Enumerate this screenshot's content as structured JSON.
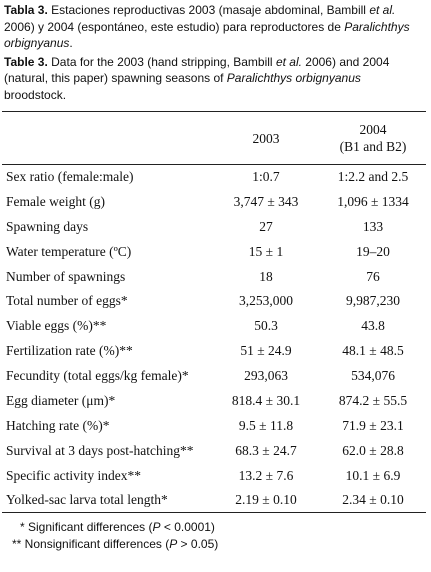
{
  "caption_es": {
    "label": "Tabla 3.",
    "parts": [
      "Estaciones reproductivas 2003 (masaje abdominal, Bambill ",
      "et al.",
      " 2006) y 2004 (espontáneo, este estudio) para reproductores de ",
      "Paralichthys orbignyanus",
      "."
    ]
  },
  "caption_en": {
    "label": "Table 3.",
    "parts": [
      "Data for the 2003 (hand stripping, Bambill ",
      "et al.",
      " 2006) and 2004 (natural, this paper) spawning seasons of ",
      "Paralichthys orbignyanus",
      " broodstock."
    ]
  },
  "table": {
    "header": [
      "2003",
      [
        "2004",
        "(B1 and B2)"
      ]
    ],
    "rows": [
      [
        "Sex ratio (female:male)",
        "1:0.7",
        "1:2.2 and 2.5"
      ],
      [
        "Female weight (g)",
        "3,747 ± 343",
        "1,096 ± 1334"
      ],
      [
        "Spawning days",
        "27",
        "133"
      ],
      [
        "Water temperature (ºC)",
        "15 ± 1",
        "19–20"
      ],
      [
        "Number of spawnings",
        "18",
        "76"
      ],
      [
        "Total number of eggs*",
        "3,253,000",
        "9,987,230"
      ],
      [
        "Viable eggs (%)**",
        "50.3",
        "43.8"
      ],
      [
        "Fertilization rate (%)**",
        "51 ± 24.9",
        "48.1 ± 48.5"
      ],
      [
        "Fecundity (total eggs/kg female)*",
        "293,063",
        "534,076"
      ],
      [
        "Egg diameter (μm)*",
        "818.4 ± 30.1",
        "874.2 ± 55.5"
      ],
      [
        "Hatching rate (%)*",
        "9.5 ± 11.8",
        "71.9 ± 23.1"
      ],
      [
        "Survival at 3 days post-hatching**",
        "68.3 ± 24.7",
        "62.0 ± 28.8"
      ],
      [
        "Specific activity index**",
        "13.2 ± 7.6",
        "10.1 ± 6.9"
      ],
      [
        "Yolked-sac larva total length*",
        "2.19 ± 0.10",
        "2.34 ± 0.10"
      ]
    ]
  },
  "footnotes": [
    [
      "* Significant differences (",
      "P",
      " < 0.0001)"
    ],
    [
      "** Nonsignificant differences (",
      "P",
      " > 0.05)"
    ]
  ]
}
